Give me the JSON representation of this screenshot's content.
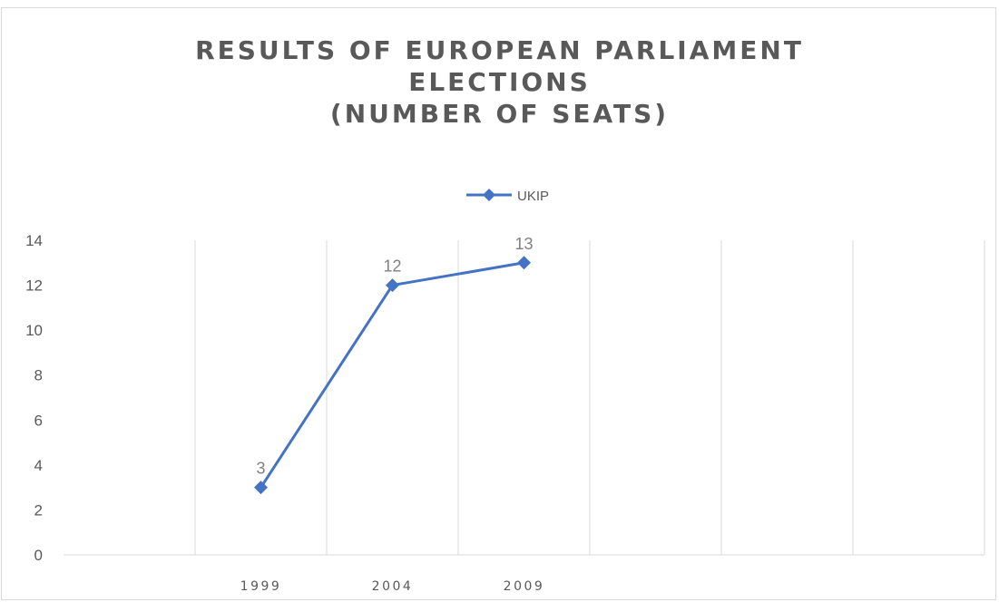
{
  "chart_data": {
    "type": "line",
    "title_lines": [
      "RESULTS OF EUROPEAN PARLIAMENT",
      "ELECTIONS",
      "(NUMBER OF SEATS)"
    ],
    "categories": [
      "",
      "1999",
      "2004",
      "2009",
      "",
      "",
      ""
    ],
    "series": [
      {
        "name": "UKIP",
        "values": [
          null,
          3,
          12,
          13,
          null,
          null,
          null
        ],
        "color": "#4472c4"
      }
    ],
    "data_labels": [
      "3",
      "12",
      "13"
    ],
    "y_ticks": [
      "0",
      "2",
      "4",
      "6",
      "8",
      "10",
      "12",
      "14"
    ],
    "ylim": [
      0,
      14
    ],
    "legend_position": "top",
    "grid": "vertical",
    "marker": "diamond"
  }
}
